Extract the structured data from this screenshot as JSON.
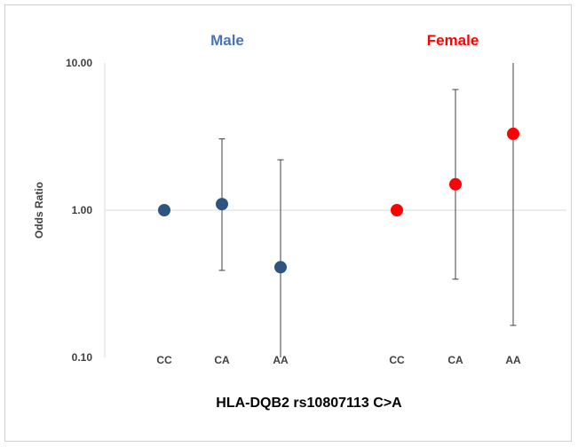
{
  "chart_data": {
    "type": "scatter",
    "scale": "log",
    "ylim": [
      0.1,
      10
    ],
    "yticks": [
      "10.00",
      "1.00",
      "0.10"
    ],
    "ytick_values": [
      10,
      1,
      0.1
    ],
    "ylabel": "Odds Ratio",
    "xlabel": "HLA-DQB2 rs10807113 C>A",
    "grid": "horizontal reference at 1.00",
    "groups": [
      {
        "name": "Male",
        "color": "#2e5582",
        "title_color": "#4a74b0",
        "points": [
          {
            "category": "CC",
            "or": 1.0,
            "lower": null,
            "upper": null
          },
          {
            "category": "CA",
            "or": 1.1,
            "lower": 0.39,
            "upper": 3.05
          },
          {
            "category": "AA",
            "or": 0.41,
            "lower": 0.1,
            "upper": 2.2
          }
        ]
      },
      {
        "name": "Female",
        "color": "#ff0000",
        "title_color": "#ff0000",
        "points": [
          {
            "category": "CC",
            "or": 1.0,
            "lower": null,
            "upper": null
          },
          {
            "category": "CA",
            "or": 1.5,
            "lower": 0.34,
            "upper": 6.6
          },
          {
            "category": "AA",
            "or": 3.3,
            "lower": 0.165,
            "upper": 10
          }
        ]
      }
    ]
  }
}
